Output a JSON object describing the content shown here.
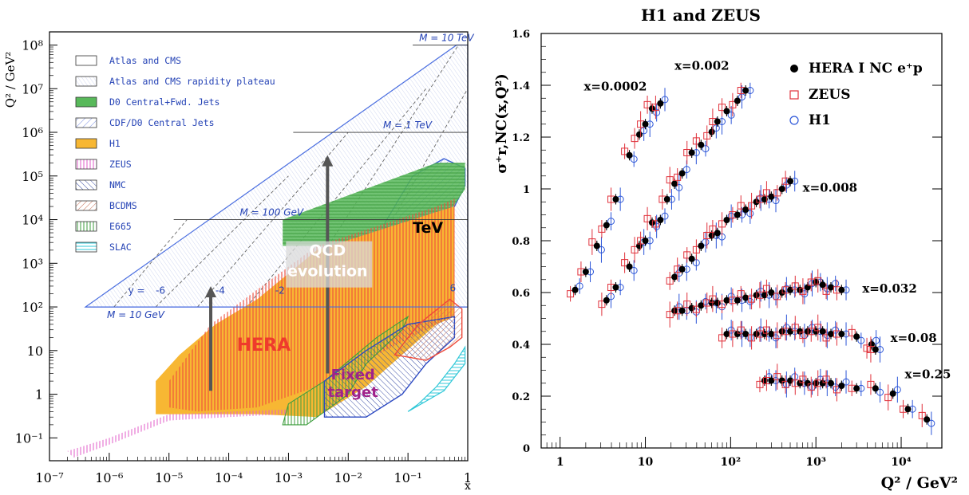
{
  "chart_data": [
    {
      "type": "area",
      "ylabel": "Q² / GeV²",
      "xlabel": "x",
      "x_scale": "log",
      "y_scale": "log",
      "x_ticks": [
        "10⁻⁷",
        "10⁻⁶",
        "10⁻⁵",
        "10⁻⁴",
        "10⁻³",
        "10⁻²",
        "10⁻¹",
        "1"
      ],
      "y_ticks": [
        "10⁻¹",
        "1",
        "10",
        "10²",
        "10³",
        "10⁴",
        "10⁵",
        "10⁶",
        "10⁷",
        "10⁸"
      ],
      "xlim": [
        1e-07,
        1
      ],
      "ylim": [
        0.03,
        200000000.0
      ],
      "legend": [
        {
          "label": "Atlas and CMS",
          "color": "#ffffff",
          "hatch": "none"
        },
        {
          "label": "Atlas and CMS rapidity plateau",
          "color": "#ffffff",
          "hatch": "diag"
        },
        {
          "label": "D0 Central+Fwd. Jets",
          "color": "#58b95a",
          "hatch": "none"
        },
        {
          "label": "CDF/D0 Central Jets",
          "color": "#6f8fd6",
          "hatch": "diag"
        },
        {
          "label": "H1",
          "color": "#f7b733",
          "hatch": "none"
        },
        {
          "label": "ZEUS",
          "color": "#e25ec9",
          "hatch": "vert"
        },
        {
          "label": "NMC",
          "color": "#5b6fb5",
          "hatch": "diag"
        },
        {
          "label": "BCDMS",
          "color": "#c8735a",
          "hatch": "diag"
        },
        {
          "label": "E665",
          "color": "#3f9e3f",
          "hatch": "vert"
        },
        {
          "label": "SLAC",
          "color": "#30c8d8",
          "hatch": "horiz"
        }
      ],
      "legend_position": "top-left",
      "annotations": {
        "mass_lines": [
          {
            "label": "M = 10 GeV",
            "q2": 100
          },
          {
            "label": "M = 100 GeV",
            "q2": 10000
          },
          {
            "label": "M = 1 TeV",
            "q2": 1000000
          },
          {
            "label": "M = 10 TeV",
            "q2": 100000000
          }
        ],
        "y_label": "y =",
        "rapidities": [
          "-6",
          "-4",
          "-2",
          "6"
        ],
        "tev": "TeV",
        "qcd": [
          "QCD",
          "evolution"
        ],
        "hera": "HERA",
        "fixed": [
          "Fixed",
          "target"
        ]
      }
    },
    {
      "type": "scatter",
      "title": "H1 and ZEUS",
      "xlabel": "Q² / GeV²",
      "ylabel": "σ⁺r,NC(x,Q²)",
      "x_scale": "log",
      "xlim": [
        0.6,
        30000
      ],
      "ylim": [
        0,
        1.6
      ],
      "y_ticks": [
        "0",
        "0.2",
        "0.4",
        "0.6",
        "0.8",
        "1",
        "1.2",
        "1.4",
        "1.6"
      ],
      "x_ticks": [
        "1",
        "10",
        "10²",
        "10³",
        "10⁴"
      ],
      "legend": [
        {
          "label": "HERA I NC e⁺p",
          "marker": "filled-circle",
          "color": "#000000"
        },
        {
          "label": "ZEUS",
          "marker": "open-square",
          "color": "#e0303a"
        },
        {
          "label": "H1",
          "marker": "open-circle",
          "color": "#2b55d8"
        }
      ],
      "legend_position": "top-right",
      "series": [
        {
          "name": "x=0.0002",
          "q2": [
            1.5,
            2.0,
            2.7,
            3.5,
            4.5,
            6.5,
            8.5,
            10,
            12,
            15
          ],
          "sigma": [
            0.61,
            0.68,
            0.78,
            0.86,
            0.96,
            1.13,
            1.21,
            1.25,
            1.31,
            1.33
          ]
        },
        {
          "name": "x=0.002",
          "q2": [
            3.5,
            4.5,
            6.5,
            8.5,
            10,
            12,
            15,
            18,
            22,
            27,
            35,
            45,
            60,
            70,
            90,
            120,
            150
          ],
          "sigma": [
            0.57,
            0.62,
            0.7,
            0.78,
            0.8,
            0.87,
            0.88,
            0.96,
            1.02,
            1.06,
            1.14,
            1.17,
            1.22,
            1.26,
            1.3,
            1.34,
            1.38
          ]
        },
        {
          "name": "x=0.008",
          "q2": [
            22,
            27,
            35,
            45,
            60,
            70,
            90,
            120,
            150,
            200,
            250,
            300,
            400,
            500
          ],
          "sigma": [
            0.66,
            0.69,
            0.73,
            0.78,
            0.82,
            0.83,
            0.88,
            0.9,
            0.92,
            0.95,
            0.96,
            0.97,
            1.0,
            1.03
          ]
        },
        {
          "name": "x=0.032",
          "q2": [
            22,
            27,
            35,
            45,
            60,
            70,
            90,
            120,
            150,
            200,
            250,
            300,
            400,
            500,
            650,
            800,
            1000,
            1200,
            1500,
            2000
          ],
          "sigma": [
            0.53,
            0.53,
            0.54,
            0.55,
            0.56,
            0.56,
            0.57,
            0.57,
            0.58,
            0.59,
            0.59,
            0.6,
            0.6,
            0.61,
            0.61,
            0.62,
            0.64,
            0.63,
            0.62,
            0.61
          ]
        },
        {
          "name": "x=0.08",
          "q2": [
            90,
            120,
            150,
            200,
            250,
            300,
            400,
            500,
            650,
            800,
            1000,
            1200,
            1500,
            2000,
            3000,
            4500,
            5000
          ],
          "sigma": [
            0.44,
            0.44,
            0.44,
            0.44,
            0.44,
            0.44,
            0.45,
            0.45,
            0.45,
            0.45,
            0.45,
            0.45,
            0.44,
            0.44,
            0.43,
            0.4,
            0.38
          ]
        },
        {
          "name": "x=0.25",
          "q2": [
            250,
            300,
            400,
            500,
            650,
            800,
            1000,
            1200,
            1500,
            2000,
            3000,
            5000,
            8000,
            12000,
            20000
          ],
          "sigma": [
            0.26,
            0.26,
            0.26,
            0.26,
            0.25,
            0.25,
            0.25,
            0.25,
            0.25,
            0.24,
            0.23,
            0.23,
            0.21,
            0.15,
            0.11
          ]
        }
      ]
    }
  ]
}
